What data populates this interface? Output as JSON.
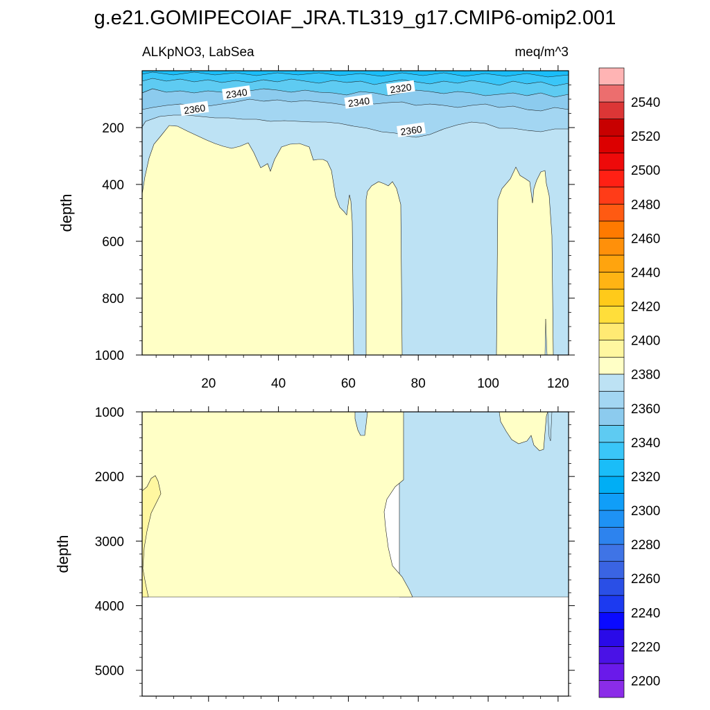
{
  "title": "g.e21.GOMIPECOIAF_JRA.TL319_g17.CMIP6-omip2.001",
  "left_subtitle": "ALKpNO3, LabSea",
  "right_subtitle": "meq/m^3",
  "colors": {
    "background": "#ffffff",
    "contour_line": "#1a1a1a",
    "fill_2340_2350": "#8ccbee",
    "fill_2350_2360": "#a3d6f2",
    "fill_2360_2370": "#bde2f4",
    "fill_2370_2380": "#ffffc6"
  },
  "chart_data": [
    {
      "type": "heatmap",
      "panel": "upper",
      "variable": "ALKpNO3",
      "region": "LabSea",
      "units": "meq/m^3",
      "ylabel": "depth",
      "xlabel": "",
      "xlim": [
        1,
        123
      ],
      "ylim": [
        0,
        1000
      ],
      "y_inverted": true,
      "x_ticks": [
        20,
        40,
        60,
        80,
        100,
        120
      ],
      "y_ticks": [
        200,
        400,
        600,
        800,
        1000
      ],
      "contour_labels": [
        {
          "text": "2340",
          "x": 28,
          "depth": 80
        },
        {
          "text": "2360",
          "x": 16,
          "depth": 135
        },
        {
          "text": "2340",
          "x": 63,
          "depth": 110
        },
        {
          "text": "2320",
          "x": 75,
          "depth": 62
        },
        {
          "text": "2360",
          "x": 78,
          "depth": 210
        }
      ],
      "regions": [
        {
          "level_range": [
            2370,
            2380
          ],
          "description": "pale yellow body below ~200-300 m, x 1-61"
        },
        {
          "level_range": [
            2370,
            2380
          ],
          "description": "pale yellow column, x 65-75"
        },
        {
          "level_range": [
            2370,
            2380
          ],
          "description": "pale yellow column, x 103-117"
        },
        {
          "level_range": [
            2360,
            2370
          ],
          "description": "light blue background"
        },
        {
          "level_range": [
            2300,
            2360
          ],
          "description": "blue gradient near surface, 0-200 m"
        }
      ]
    },
    {
      "type": "heatmap",
      "panel": "lower",
      "variable": "ALKpNO3",
      "region": "LabSea",
      "units": "meq/m^3",
      "ylabel": "depth",
      "xlabel": "",
      "xlim": [
        1,
        123
      ],
      "ylim": [
        1000,
        5400
      ],
      "y_inverted": true,
      "y_ticks": [
        1000,
        2000,
        3000,
        4000,
        5000
      ],
      "max_data_depth": 3880,
      "regions": [
        {
          "level_range": [
            2370,
            2380
          ],
          "description": "pale yellow, x 1-76 down to ~3880 m"
        },
        {
          "level_range": [
            2380,
            2390
          ],
          "description": "yellow sliver near x 1-6, 2000-3850 m"
        },
        {
          "level_range": [
            2360,
            2370
          ],
          "description": "light blue, x 76-123"
        },
        {
          "level_range": [
            2370,
            2380
          ],
          "description": "pale yellow patches near x 103-117, 1000-1650 m"
        }
      ]
    }
  ],
  "colorbar": {
    "levels": [
      2200,
      2210,
      2220,
      2230,
      2240,
      2250,
      2260,
      2270,
      2280,
      2290,
      2300,
      2310,
      2320,
      2330,
      2340,
      2350,
      2360,
      2370,
      2380,
      2390,
      2400,
      2410,
      2420,
      2430,
      2440,
      2450,
      2460,
      2470,
      2480,
      2490,
      2500,
      2510,
      2520,
      2530,
      2540,
      2550
    ],
    "labels": [
      "2200",
      "2220",
      "2240",
      "2260",
      "2280",
      "2300",
      "2320",
      "2340",
      "2360",
      "2380",
      "2400",
      "2420",
      "2440",
      "2460",
      "2480",
      "2500",
      "2520",
      "2540"
    ],
    "colors_bottom_to_top": [
      "#8b2ce8",
      "#6a1aea",
      "#4a12e6",
      "#2a0ae8",
      "#0a0aff",
      "#1c3af0",
      "#2a4fe6",
      "#3a64e3",
      "#3f74e6",
      "#2d83ee",
      "#1e92f5",
      "#109ef8",
      "#00aef5",
      "#1abdf8",
      "#3ac6f8",
      "#5ecbf2",
      "#8ccbee",
      "#a3d6f2",
      "#bde2f4",
      "#ffffc6",
      "#fff7a0",
      "#ffea73",
      "#ffde3a",
      "#ffca1a",
      "#ffb414",
      "#ffa40e",
      "#ff900a",
      "#ff7a00",
      "#ff5a12",
      "#ff3c18",
      "#ff2014",
      "#ee0a0a",
      "#dc0000",
      "#c80000",
      "#dc3636",
      "#ec6e6e",
      "#ffb4b4"
    ]
  }
}
